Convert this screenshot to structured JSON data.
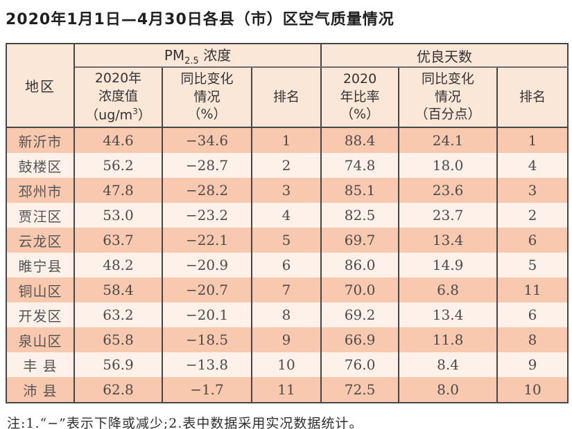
{
  "page": {
    "title": "2020年1月1日—4月30日各县（市）区空气质量情况",
    "footnote": "注:1.“−”表示下降或减少;2.表中数据采用实况数据统计。"
  },
  "table": {
    "region_header": "地区",
    "pm_group": {
      "main": "PM",
      "sub": "2.5",
      "rest": " 浓度"
    },
    "good_group": "优良天数",
    "sub": {
      "pm_value_l1": "2020年",
      "pm_value_l2": "浓度值",
      "pm_value_l3a": "（ug/m",
      "pm_value_l3_sup": "3",
      "pm_value_l3b": "）",
      "pm_change_l1": "同比变化",
      "pm_change_l2": "情况",
      "pm_change_l3": "（%）",
      "pm_rank": "排名",
      "good_rate_l1": "2020",
      "good_rate_l2": "年比率",
      "good_rate_l3": "（%）",
      "good_change_l1": "同比变化",
      "good_change_l2": "情况",
      "good_change_l3": "（百分点）",
      "good_rank": "排名"
    },
    "column_keys": [
      "region",
      "pm_value",
      "pm_change",
      "pm_rank",
      "good_rate",
      "good_change",
      "good_rank"
    ],
    "rows": [
      {
        "region": "新沂市",
        "pm_value": "44.6",
        "pm_change": "−34.6",
        "pm_rank": "1",
        "good_rate": "88.4",
        "good_change": "24.1",
        "good_rank": "1"
      },
      {
        "region": "鼓楼区",
        "pm_value": "56.2",
        "pm_change": "−28.7",
        "pm_rank": "2",
        "good_rate": "74.8",
        "good_change": "18.0",
        "good_rank": "4"
      },
      {
        "region": "邳州市",
        "pm_value": "47.8",
        "pm_change": "−28.2",
        "pm_rank": "3",
        "good_rate": "85.1",
        "good_change": "23.6",
        "good_rank": "3"
      },
      {
        "region": "贾汪区",
        "pm_value": "53.0",
        "pm_change": "−23.2",
        "pm_rank": "4",
        "good_rate": "82.5",
        "good_change": "23.7",
        "good_rank": "2"
      },
      {
        "region": "云龙区",
        "pm_value": "63.7",
        "pm_change": "−22.1",
        "pm_rank": "5",
        "good_rate": "69.7",
        "good_change": "13.4",
        "good_rank": "6"
      },
      {
        "region": "睢宁县",
        "pm_value": "48.2",
        "pm_change": "−20.9",
        "pm_rank": "6",
        "good_rate": "86.0",
        "good_change": "14.9",
        "good_rank": "5"
      },
      {
        "region": "铜山区",
        "pm_value": "58.4",
        "pm_change": "−20.7",
        "pm_rank": "7",
        "good_rate": "70.0",
        "good_change": "6.8",
        "good_rank": "11"
      },
      {
        "region": "开发区",
        "pm_value": "63.2",
        "pm_change": "−20.1",
        "pm_rank": "8",
        "good_rate": "69.2",
        "good_change": "13.4",
        "good_rank": "6"
      },
      {
        "region": "泉山区",
        "pm_value": "65.8",
        "pm_change": "−18.5",
        "pm_rank": "9",
        "good_rate": "66.9",
        "good_change": "11.8",
        "good_rank": "8"
      },
      {
        "region": "丰 县",
        "pm_value": "56.9",
        "pm_change": "−13.8",
        "pm_rank": "10",
        "good_rate": "76.0",
        "good_change": "8.4",
        "good_rank": "9"
      },
      {
        "region": "沛 县",
        "pm_value": "62.8",
        "pm_change": "−1.7",
        "pm_rank": "11",
        "good_rate": "72.5",
        "good_change": "8.0",
        "good_rank": "10"
      }
    ]
  },
  "colors": {
    "row_dark": "#f8c9ae",
    "row_light": "#fdf1e9",
    "header_bg": "#fae7d8",
    "border": "#454545"
  }
}
